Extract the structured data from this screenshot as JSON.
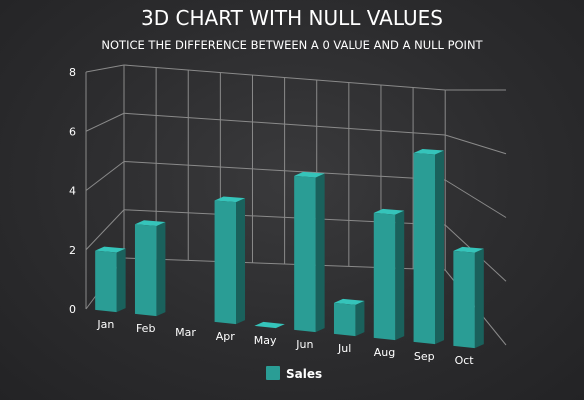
{
  "chart_data": {
    "type": "bar",
    "three_d": true,
    "title": "3D CHART WITH NULL VALUES",
    "subtitle": "NOTICE THE DIFFERENCE BETWEEN A 0 VALUE AND A NULL POINT",
    "categories": [
      "Jan",
      "Feb",
      "Mar",
      "Apr",
      "May",
      "Jun",
      "Jul",
      "Aug",
      "Sep",
      "Oct"
    ],
    "series": [
      {
        "name": "Sales",
        "values": [
          2,
          3,
          null,
          4,
          0,
          5,
          1,
          4,
          6,
          3
        ],
        "color": "#2a9d95"
      }
    ],
    "ylim": [
      0,
      8
    ],
    "yticks": [
      0,
      2,
      4,
      6,
      8
    ],
    "grid": true,
    "legend": "bottom-center",
    "xlabel": "",
    "ylabel": ""
  }
}
